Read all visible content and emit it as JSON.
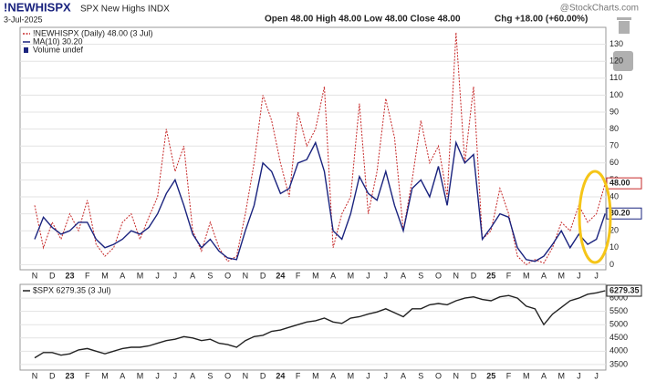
{
  "header": {
    "title": "!NEWHISPX",
    "subtitle": "SPX New Highs INDX",
    "date": "3-Jul-2025",
    "quote": "Open 48.00 High 48.00 Low 48.00 Close 48.00",
    "change": "Chg +18.00 (+60.00%)",
    "brand": "@StockCharts.com"
  },
  "chart_data": [
    {
      "type": "line",
      "categories": [
        "N",
        null,
        "D",
        null,
        "23",
        null,
        "F",
        null,
        "M",
        null,
        "A",
        null,
        "M",
        null,
        "J",
        null,
        "J",
        null,
        "A",
        null,
        "S",
        null,
        "O",
        null,
        "N",
        null,
        "D",
        null,
        "24",
        null,
        "F",
        null,
        "M",
        null,
        "A",
        null,
        "M",
        null,
        "J",
        null,
        "J",
        null,
        "A",
        null,
        "S",
        null,
        "O",
        null,
        "N",
        null,
        "D",
        null,
        "25",
        null,
        "F",
        null,
        "M",
        null,
        "A",
        null,
        "M",
        null,
        "J",
        null,
        "J",
        null
      ],
      "series": [
        {
          "name": "!NEWHISPX (Daily) 48.00 (3 Jul)",
          "color": "#c62828",
          "dash": true,
          "last_label": "48.00",
          "values": [
            35,
            10,
            25,
            15,
            30,
            20,
            38,
            12,
            5,
            10,
            25,
            30,
            15,
            28,
            40,
            80,
            55,
            70,
            20,
            8,
            25,
            10,
            2,
            5,
            30,
            60,
            100,
            85,
            60,
            40,
            90,
            70,
            80,
            105,
            10,
            30,
            40,
            95,
            30,
            55,
            98,
            75,
            20,
            50,
            85,
            60,
            70,
            40,
            137,
            60,
            105,
            15,
            20,
            45,
            30,
            5,
            0,
            3,
            1,
            10,
            25,
            20,
            35,
            25,
            30,
            48
          ]
        },
        {
          "name": "MA(10) 30.20",
          "color": "#1a237e",
          "dash": false,
          "last_label": "30.20",
          "values": [
            15,
            28,
            22,
            18,
            20,
            25,
            25,
            15,
            10,
            12,
            15,
            20,
            18,
            22,
            30,
            42,
            50,
            35,
            18,
            10,
            15,
            8,
            4,
            3,
            20,
            35,
            60,
            55,
            42,
            45,
            60,
            62,
            72,
            55,
            20,
            15,
            30,
            52,
            42,
            38,
            55,
            35,
            20,
            45,
            50,
            40,
            58,
            35,
            72,
            60,
            65,
            15,
            22,
            30,
            28,
            10,
            3,
            2,
            5,
            12,
            20,
            10,
            18,
            12,
            15,
            30.2
          ]
        }
      ],
      "legend_note": "Volume undef",
      "ylim": [
        -3,
        140
      ],
      "yticks": [
        0,
        10,
        20,
        30,
        40,
        50,
        60,
        70,
        80,
        90,
        100,
        110,
        120,
        130
      ],
      "grid": true
    },
    {
      "type": "line",
      "categories": [
        "N",
        null,
        "D",
        null,
        "23",
        null,
        "F",
        null,
        "M",
        null,
        "A",
        null,
        "M",
        null,
        "J",
        null,
        "J",
        null,
        "A",
        null,
        "S",
        null,
        "O",
        null,
        "N",
        null,
        "D",
        null,
        "24",
        null,
        "F",
        null,
        "M",
        null,
        "A",
        null,
        "M",
        null,
        "J",
        null,
        "J",
        null,
        "A",
        null,
        "S",
        null,
        "O",
        null,
        "N",
        null,
        "D",
        null,
        "25",
        null,
        "F",
        null,
        "M",
        null,
        "A",
        null,
        "M",
        null,
        "J",
        null,
        "J",
        null
      ],
      "series": [
        {
          "name": "$SPX 6279.35 (3 Jul)",
          "color": "#222222",
          "dash": false,
          "last_label": "6279.35",
          "values": [
            3750,
            3950,
            3950,
            3850,
            3900,
            4050,
            4100,
            4000,
            3900,
            4000,
            4100,
            4150,
            4150,
            4200,
            4300,
            4400,
            4450,
            4550,
            4500,
            4400,
            4450,
            4300,
            4250,
            4150,
            4400,
            4550,
            4600,
            4750,
            4800,
            4900,
            5000,
            5100,
            5150,
            5250,
            5100,
            5050,
            5250,
            5300,
            5400,
            5480,
            5600,
            5450,
            5300,
            5600,
            5600,
            5750,
            5800,
            5750,
            5900,
            6000,
            6050,
            5950,
            5900,
            6050,
            6100,
            6000,
            5700,
            5600,
            5000,
            5400,
            5650,
            5900,
            6000,
            6150,
            6200,
            6279.35
          ]
        }
      ],
      "ylim": [
        3290,
        6520
      ],
      "yticks": [
        3500,
        4000,
        4500,
        5000,
        5500,
        6000
      ],
      "grid": true
    }
  ]
}
